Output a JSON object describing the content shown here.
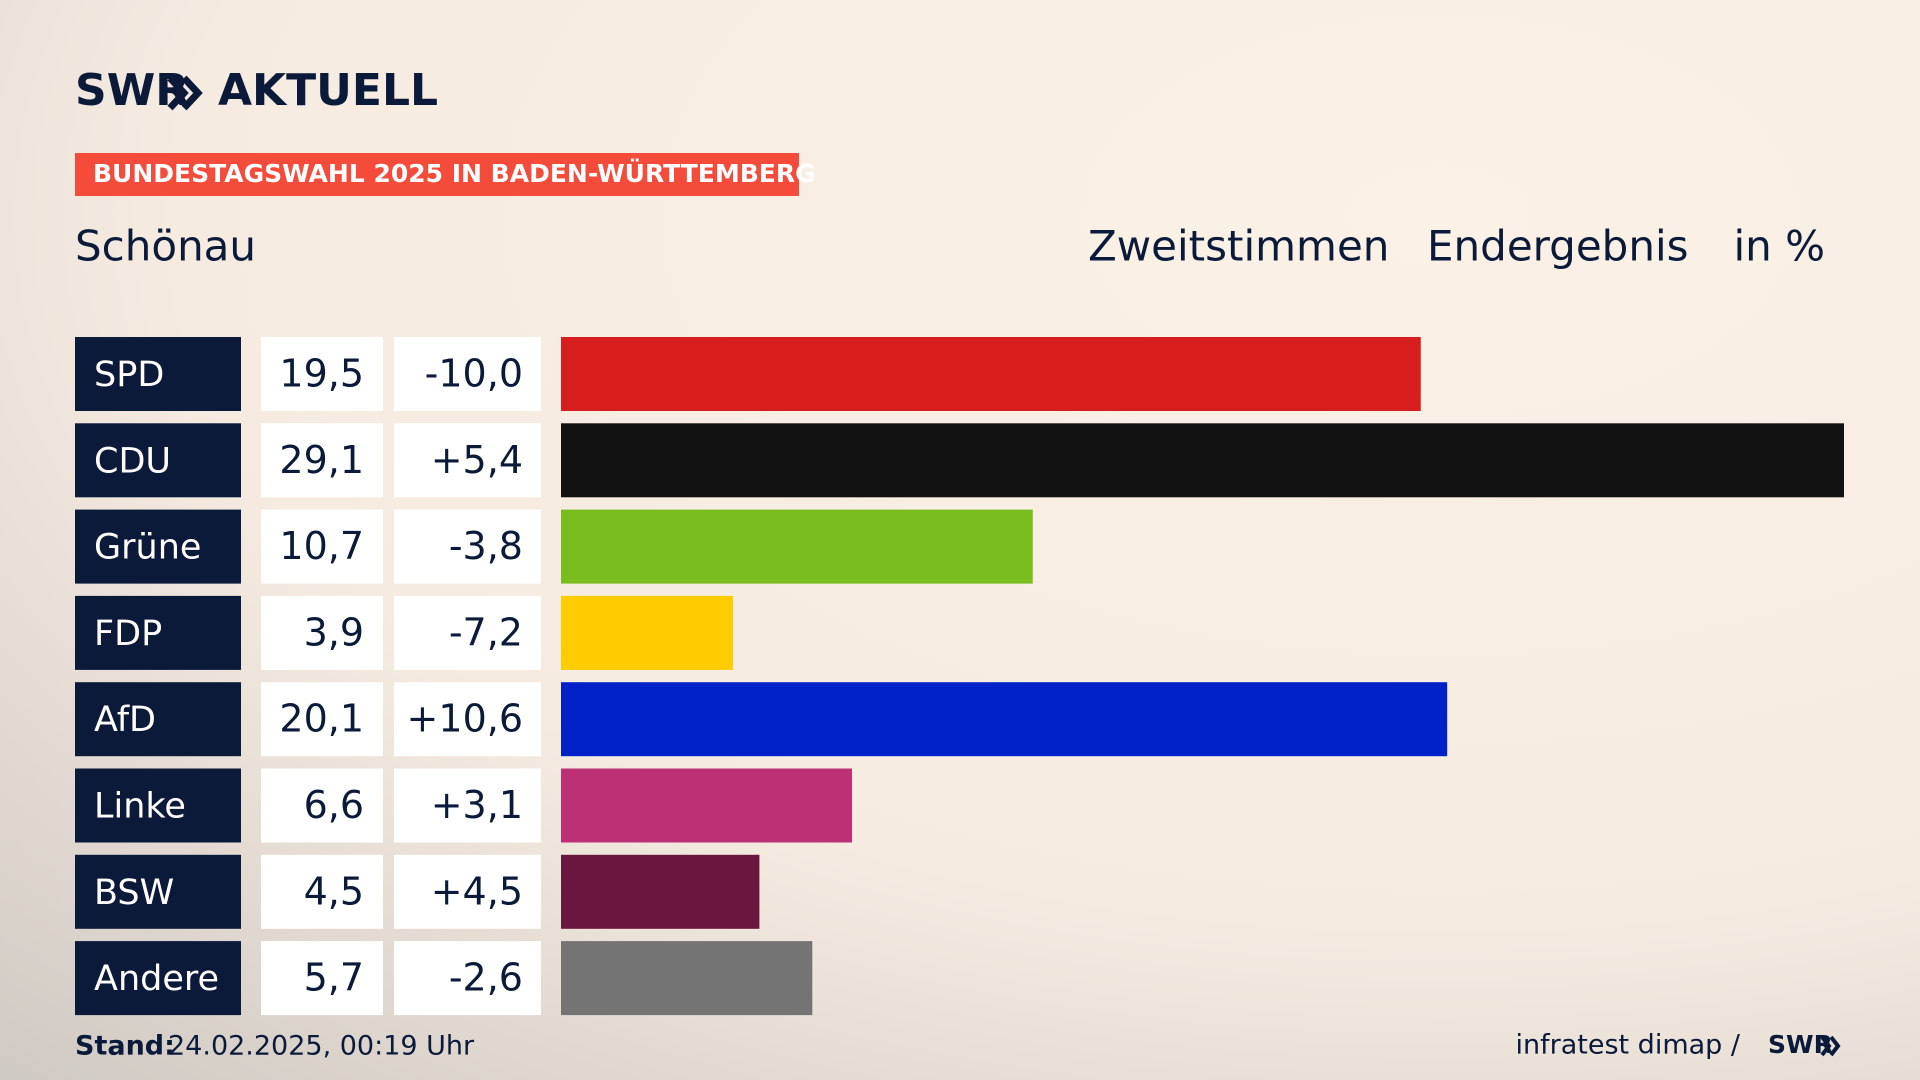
{
  "logo": {
    "brand": "SWR",
    "product": "AKTUELL"
  },
  "chart_data": {
    "type": "bar",
    "kicker": "BUNDESTAGSWAHL 2025 IN BADEN-WÜRTTEMBERG",
    "title": "Schönau",
    "subtitle": [
      "Zweitstimmen",
      "Endergebnis",
      "in %"
    ],
    "categories": [
      "SPD",
      "CDU",
      "Grüne",
      "FDP",
      "AfD",
      "Linke",
      "BSW",
      "Andere"
    ],
    "values": [
      19.5,
      29.1,
      10.7,
      3.9,
      20.1,
      6.6,
      4.5,
      5.7
    ],
    "value_labels": [
      "19,5",
      "29,1",
      "10,7",
      "3,9",
      "20,1",
      "6,6",
      "4,5",
      "5,7"
    ],
    "changes": [
      -10.0,
      5.4,
      -3.8,
      -7.2,
      10.6,
      3.1,
      4.5,
      -2.6
    ],
    "change_labels": [
      "-10,0",
      "+5,4",
      "-3,8",
      "-7,2",
      "+10,6",
      "+3,1",
      "+4,5",
      "-2,6"
    ],
    "colors": [
      "#d61e1e",
      "#121212",
      "#78bc1e",
      "#ffcc00",
      "#0021c8",
      "#bc3076",
      "#69173e",
      "#747474"
    ]
  },
  "footer": {
    "stand_label": "Stand:",
    "stand": "24.02.2025, 00:19 Uhr",
    "source": "infratest dimap /",
    "source_brand": "SWR"
  }
}
